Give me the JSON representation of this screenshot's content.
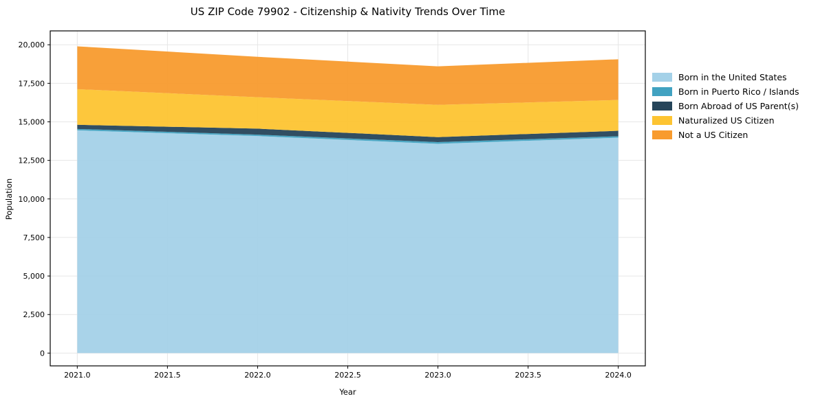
{
  "chart_data": {
    "type": "area",
    "stacked": true,
    "title": "US ZIP Code 79902 - Citizenship & Nativity Trends Over Time",
    "xlabel": "Year",
    "ylabel": "Population",
    "x": [
      2021,
      2022,
      2023,
      2024
    ],
    "series": [
      {
        "name": "Born in the United States",
        "color": "#a4d1e8",
        "values": [
          14450,
          14080,
          13575,
          13975
        ]
      },
      {
        "name": "Born in Puerto Rico / Islands",
        "color": "#41a2c1",
        "values": [
          90,
          90,
          110,
          90
        ]
      },
      {
        "name": "Born Abroad of US Parent(s)",
        "color": "#26455a",
        "values": [
          270,
          390,
          325,
          355
        ]
      },
      {
        "name": "Naturalized US Citizen",
        "color": "#fdc432",
        "values": [
          2310,
          2040,
          2090,
          2000
        ]
      },
      {
        "name": "Not a US Citizen",
        "color": "#f89b2e",
        "values": [
          2780,
          2620,
          2500,
          2640
        ]
      }
    ],
    "stack_totals": [
      19900,
      19220,
      18600,
      19060
    ],
    "x_ticks": {
      "values": [
        2021,
        2021.5,
        2022,
        2022.5,
        2023,
        2023.5,
        2024
      ],
      "labels": [
        "2021.0",
        "2021.5",
        "2022.0",
        "2022.5",
        "2023.0",
        "2023.5",
        "2024.0"
      ]
    },
    "y_ticks": {
      "values": [
        0,
        2500,
        5000,
        7500,
        10000,
        12500,
        15000,
        17500,
        20000
      ],
      "labels": [
        "0",
        "2,500",
        "5,000",
        "7,500",
        "10,000",
        "12,500",
        "15,000",
        "17,500",
        "20,000"
      ]
    },
    "xlim": [
      2020.85,
      2024.15
    ],
    "ylim": [
      -830,
      20900
    ],
    "grid": true,
    "legend_position": "right"
  },
  "colors": {
    "spine": "#000000",
    "gridline": "#e6e6e6",
    "tick_label": "#000000"
  }
}
